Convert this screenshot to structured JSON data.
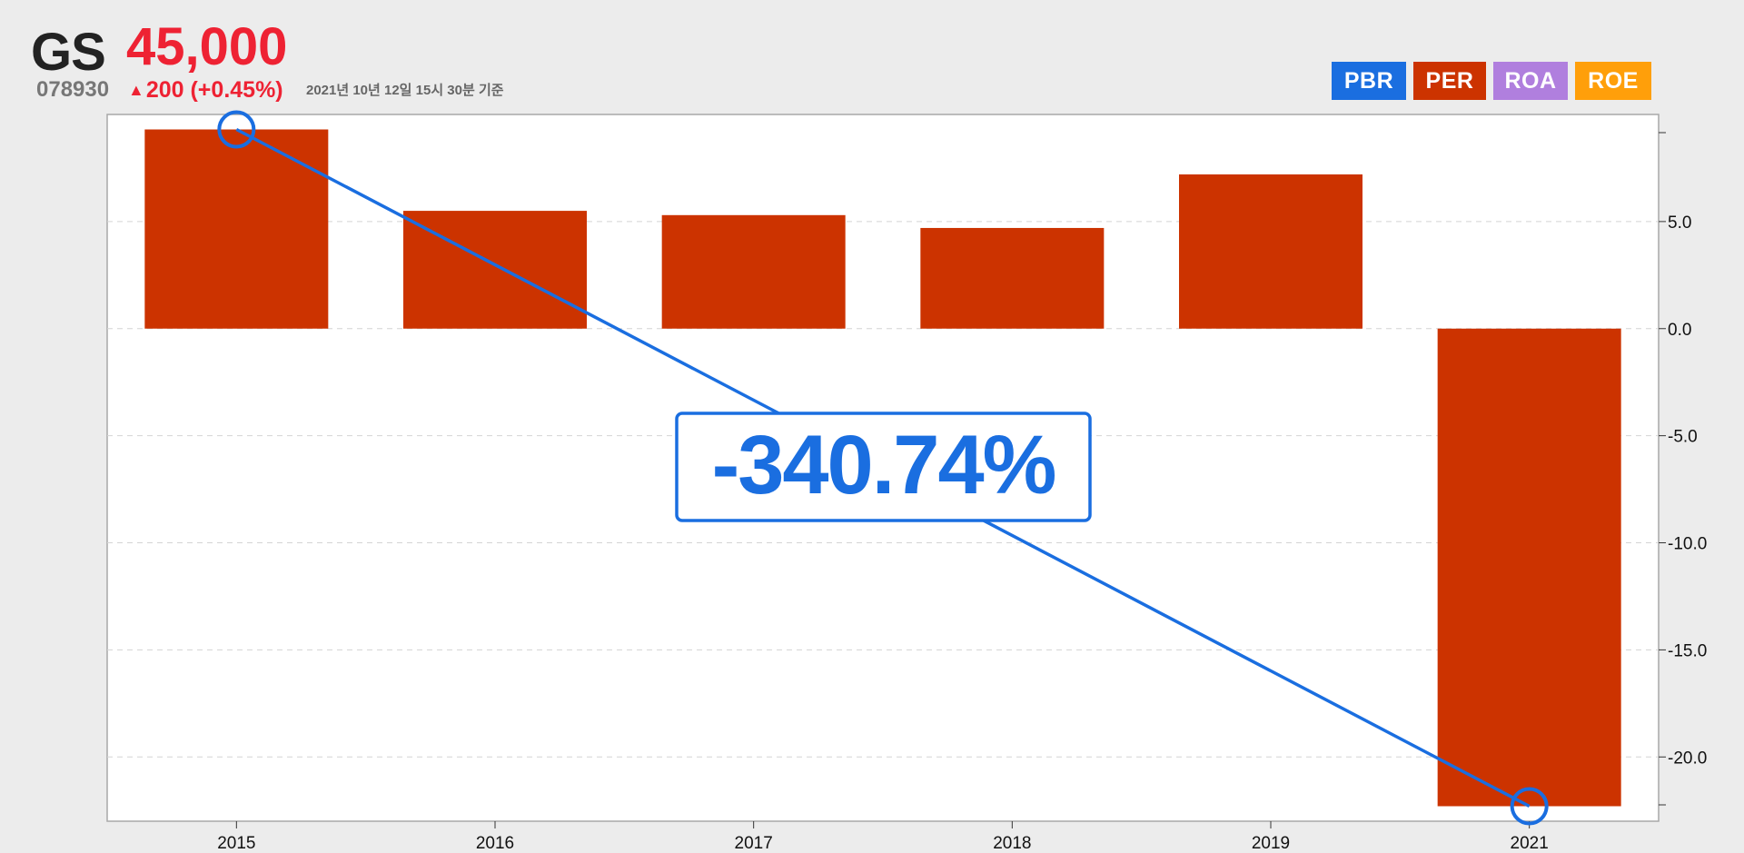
{
  "stock": {
    "name": "GS",
    "price": "45,000",
    "code": "078930",
    "change_arrow": "▲",
    "change": "200 (+0.45%)",
    "as_of": "2021년 10년 12일 15시 30분 기준"
  },
  "tabs": [
    {
      "label": "PBR",
      "color": "#1a6ee0"
    },
    {
      "label": "PER",
      "color": "#cc3300"
    },
    {
      "label": "ROA",
      "color": "#b07fde"
    },
    {
      "label": "ROE",
      "color": "#ff9f0a"
    }
  ],
  "chart_data": {
    "type": "bar",
    "categories": [
      "2015",
      "2016",
      "2017",
      "2018",
      "2019",
      "2021"
    ],
    "series": [
      {
        "values": [
          9.3,
          5.5,
          5.3,
          4.7,
          7.2,
          -22.3
        ]
      }
    ],
    "ylim": [
      -23.0,
      10.0
    ],
    "yticks": [
      5.0,
      0.0,
      -5.0,
      -10.0,
      -15.0,
      -20.0
    ],
    "ytick_labels": [
      "5.0",
      "0.0",
      "-5.0",
      "-10.0",
      "-15.0",
      "-20.0"
    ],
    "grid": true,
    "bar_color": "#cc3300",
    "annotation": {
      "text": "-340.74%",
      "from_category": "2015",
      "to_category": "2021",
      "color": "#1a6ee0"
    }
  }
}
